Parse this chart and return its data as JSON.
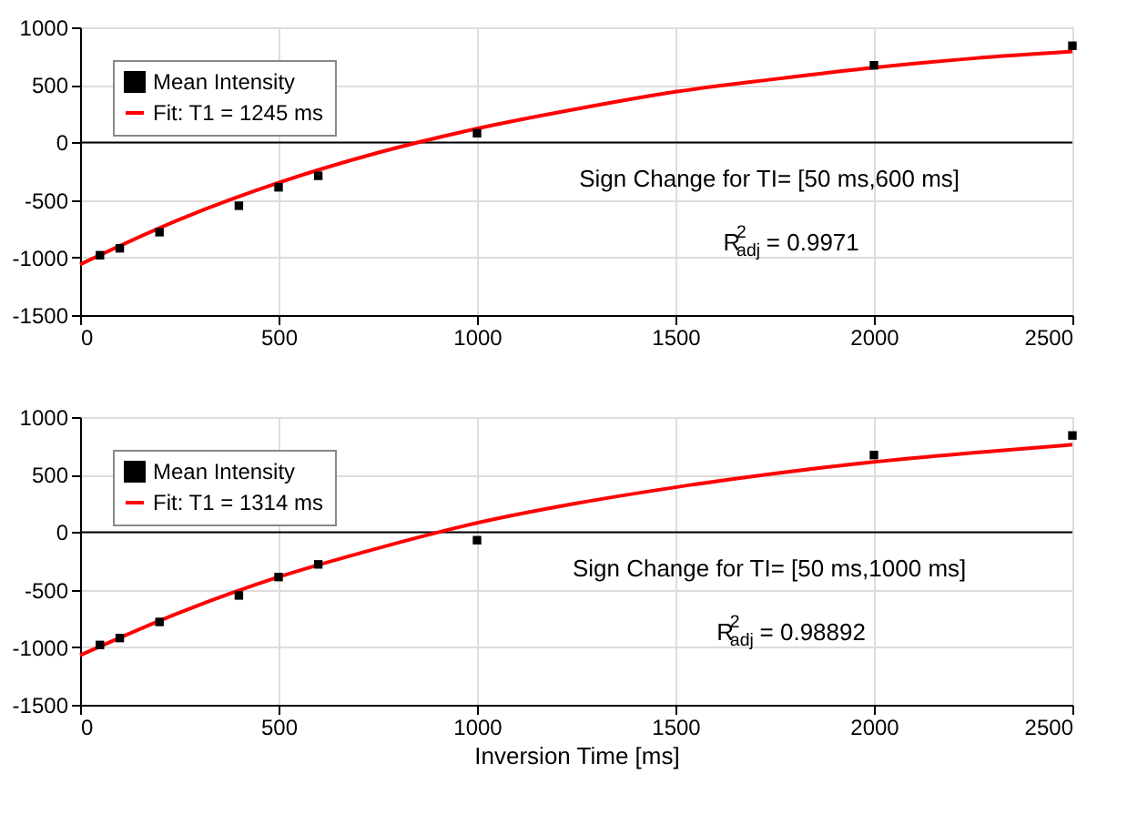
{
  "chart_data": [
    {
      "type": "scatter",
      "legend": "top left",
      "grid": true,
      "xlim": [
        0,
        2500
      ],
      "ylim": [
        -1500,
        1000
      ],
      "xticks": [
        0,
        500,
        1000,
        1500,
        2000,
        2500
      ],
      "yticks": [
        -1500,
        -1000,
        -500,
        0,
        500,
        1000
      ],
      "ref_lines": [
        {
          "axis": "y",
          "value": 0,
          "color": "#000000"
        }
      ],
      "annotations": [
        "Sign Change for TI= [50 ms,600 ms]",
        "R$^{2}$$_{adj}$ = 0.9971"
      ],
      "series": [
        {
          "name": "Mean Intensity",
          "marker": "square",
          "color": "#000000",
          "x": [
            50,
            100,
            200,
            400,
            500,
            600,
            1000,
            2000,
            2500
          ],
          "values": [
            -980,
            -920,
            -780,
            -550,
            -390,
            -290,
            80,
            670,
            840
          ]
        },
        {
          "name": "Fit: T1 = 1245 ms",
          "type": "line",
          "color": "#ff0000",
          "x": [
            0,
            250,
            500,
            750,
            1000,
            1250,
            1500,
            1750,
            2000,
            2250,
            2500
          ],
          "values": [
            -1060,
            -670,
            -350,
            -90,
            120,
            290,
            440,
            550,
            650,
            730,
            790
          ]
        }
      ]
    },
    {
      "type": "scatter",
      "legend": "top left",
      "grid": true,
      "xlim": [
        0,
        2500
      ],
      "ylim": [
        -1500,
        1000
      ],
      "xticks": [
        0,
        500,
        1000,
        1500,
        2000,
        2500
      ],
      "yticks": [
        -1500,
        -1000,
        -500,
        0,
        500,
        1000
      ],
      "xlabel": "Inversion Time [ms]",
      "ref_lines": [
        {
          "axis": "y",
          "value": 0,
          "color": "#000000"
        }
      ],
      "annotations": [
        "Sign Change for TI= [50 ms,1000 ms]",
        "R$^{2}$$_{adj}$ = 0.98892"
      ],
      "series": [
        {
          "name": "Mean Intensity",
          "marker": "square",
          "color": "#000000",
          "x": [
            50,
            100,
            200,
            400,
            500,
            600,
            1000,
            2000,
            2500
          ],
          "values": [
            -980,
            -920,
            -780,
            -550,
            -390,
            -280,
            -70,
            670,
            840
          ]
        },
        {
          "name": "Fit: T1 = 1314 ms",
          "type": "line",
          "color": "#ff0000",
          "x": [
            0,
            250,
            500,
            750,
            1000,
            1250,
            1500,
            1750,
            2000,
            2250,
            2500
          ],
          "values": [
            -1070,
            -700,
            -390,
            -140,
            80,
            250,
            390,
            510,
            610,
            690,
            760
          ]
        }
      ]
    }
  ]
}
